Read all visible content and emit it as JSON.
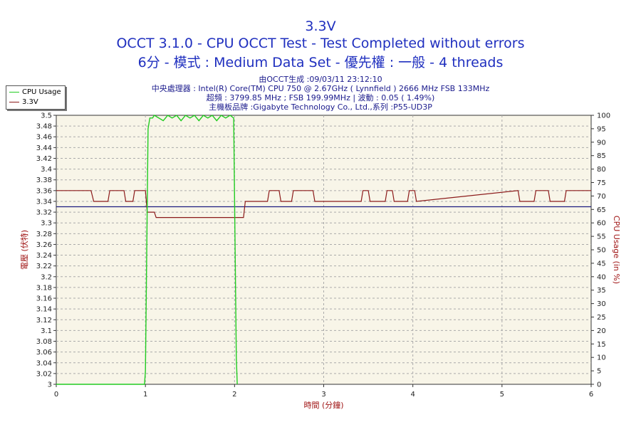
{
  "header": {
    "title": "3.3V",
    "subtitle1": "OCCT 3.1.0 - CPU OCCT Test - Test Completed without errors",
    "subtitle2": "6分 - 模式 : Medium Data Set - 優先權 : 一般 - 4 threads",
    "info1": "由OCCT生成 :09/03/11 23:12:10",
    "info2": "中央處理器 : Intel(R) Core(TM) CPU 750 @ 2.67GHz ( Lynnfield ) 2666 MHz FSB 133MHz",
    "info3": "超頻 : 3799.85 MHz ; FSB 199.99MHz | 波動 : 0.05 ( 1.49%)",
    "info4": "主機板品牌 :Gigabyte Technology Co., Ltd.,系列 :P55-UD3P"
  },
  "colors": {
    "cpu_usage": "#22cc22",
    "voltage": "#8b1a1a",
    "reference": "#1c1c80",
    "plot_bg": "#f8f5e8",
    "grid": "#aaaaaa"
  },
  "chart_data": {
    "type": "line",
    "xlabel": "時間 (分鐘)",
    "ylabel": "電壓 (伏特)",
    "y2label": "CPU Usage (in %)",
    "xlim": [
      0,
      6
    ],
    "ylim": [
      3.0,
      3.5
    ],
    "y2lim": [
      0,
      100
    ],
    "x_ticks": [
      "0",
      "1",
      "2",
      "3",
      "4",
      "5",
      "6"
    ],
    "y_ticks": [
      "3",
      "3.02",
      "3.04",
      "3.06",
      "3.08",
      "3.1",
      "3.12",
      "3.14",
      "3.16",
      "3.18",
      "3.2",
      "3.22",
      "3.24",
      "3.26",
      "3.28",
      "3.3",
      "3.32",
      "3.34",
      "3.36",
      "3.38",
      "3.4",
      "3.42",
      "3.44",
      "3.46",
      "3.48",
      "3.5"
    ],
    "y2_ticks": [
      "0",
      "5",
      "10",
      "15",
      "20",
      "25",
      "30",
      "35",
      "40",
      "45",
      "50",
      "55",
      "60",
      "65",
      "70",
      "75",
      "80",
      "85",
      "90",
      "95",
      "100"
    ],
    "grid": true,
    "legend": "top-left",
    "series": [
      {
        "name": "CPU Usage",
        "axis": "right",
        "x": [
          0.0,
          0.99,
          1.0,
          1.03,
          1.05,
          1.08,
          1.1,
          1.2,
          1.25,
          1.3,
          1.35,
          1.4,
          1.45,
          1.5,
          1.55,
          1.6,
          1.65,
          1.7,
          1.75,
          1.8,
          1.85,
          1.9,
          1.95,
          1.99,
          2.0,
          2.02,
          2.03
        ],
        "values": [
          0,
          0,
          5,
          95,
          99,
          99,
          100,
          98,
          100,
          99,
          100,
          98,
          100,
          99,
          100,
          98,
          100,
          99,
          100,
          98,
          100,
          99,
          100,
          99,
          70,
          10,
          0
        ]
      },
      {
        "name": "3.3V",
        "axis": "left",
        "x": [
          0.0,
          0.39,
          0.42,
          0.58,
          0.6,
          0.76,
          0.78,
          0.86,
          0.88,
          1.0,
          1.02,
          1.1,
          1.12,
          2.1,
          2.12,
          2.37,
          2.39,
          2.5,
          2.52,
          2.64,
          2.66,
          2.88,
          2.9,
          3.42,
          3.44,
          3.5,
          3.52,
          3.69,
          3.71,
          3.77,
          3.79,
          3.94,
          3.96,
          4.02,
          4.04,
          5.18,
          5.2,
          5.36,
          5.38,
          5.52,
          5.54,
          5.7,
          5.72,
          6.0
        ],
        "values": [
          3.36,
          3.36,
          3.34,
          3.34,
          3.36,
          3.36,
          3.34,
          3.34,
          3.36,
          3.36,
          3.32,
          3.32,
          3.31,
          3.31,
          3.34,
          3.34,
          3.36,
          3.36,
          3.34,
          3.34,
          3.36,
          3.36,
          3.34,
          3.34,
          3.36,
          3.36,
          3.34,
          3.34,
          3.36,
          3.36,
          3.34,
          3.34,
          3.36,
          3.36,
          3.34,
          3.36,
          3.34,
          3.34,
          3.36,
          3.36,
          3.34,
          3.34,
          3.36,
          3.36
        ]
      },
      {
        "name": "",
        "axis": "left",
        "x": [
          0,
          6
        ],
        "values": [
          3.33,
          3.33
        ]
      }
    ]
  }
}
